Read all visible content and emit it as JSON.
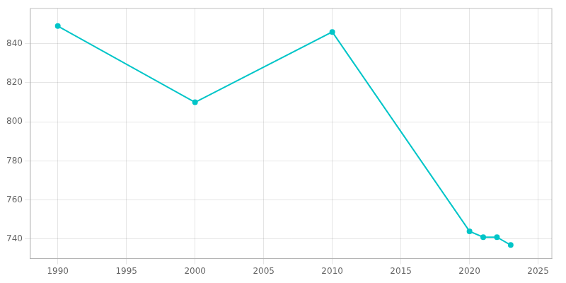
{
  "chart_data": {
    "type": "line",
    "x": [
      1990,
      2000,
      2010,
      2020,
      2021,
      2022,
      2023
    ],
    "values": [
      849,
      810,
      846,
      744,
      741,
      741,
      737
    ],
    "color": "#00C5C8",
    "marker": "circle",
    "xlim": [
      1988,
      2026
    ],
    "ylim": [
      730,
      858
    ],
    "xticks": [
      1990,
      1995,
      2000,
      2005,
      2010,
      2015,
      2020,
      2025
    ],
    "yticks": [
      740,
      760,
      780,
      800,
      820,
      840
    ],
    "grid": true
  }
}
